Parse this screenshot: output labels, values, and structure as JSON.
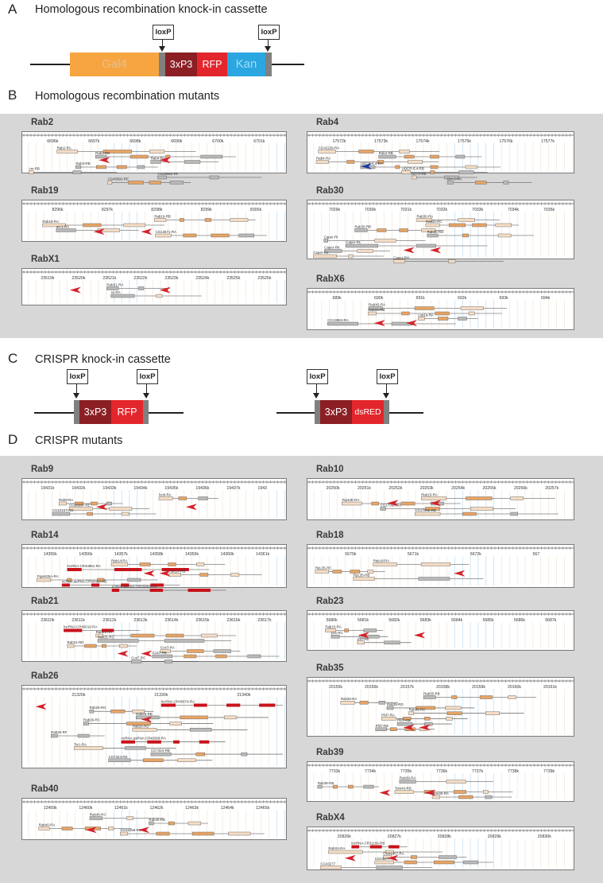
{
  "sections": {
    "a": {
      "letter": "A",
      "title": "Homologous recombination knock-in cassette"
    },
    "b": {
      "letter": "B",
      "title": "Homologous recombination mutants"
    },
    "c": {
      "letter": "C",
      "title": "CRISPR knock-in cassette"
    },
    "d": {
      "letter": "D",
      "title": "CRISPR mutants"
    }
  },
  "loxp": "loxP",
  "cassette_a": {
    "gal4": "Gal4",
    "p3": "3xP3",
    "rfp": "RFP",
    "kan": "Kan"
  },
  "cassette_c1": {
    "p3": "3xP3",
    "rfp": "RFP"
  },
  "cassette_c2": {
    "p3": "3xP3",
    "dsred": "dsRED"
  },
  "colors": {
    "orange": "#f7a541",
    "darkred": "#8b1f24",
    "red": "#e3262c",
    "blue": "#2aa6e0",
    "grey": "#808080",
    "panel_bg": "#d7d7d7",
    "exon": "#e7a466",
    "utr": "#f4dcc4",
    "ncexon": "#c8121a",
    "guide": "#d4222a",
    "guide_blue": "#1f3e9e"
  },
  "b_panels": [
    {
      "name": "Rab2",
      "ticks": [
        "6696k",
        "6697k",
        "6698k",
        "6699k",
        "6700k",
        "6701k"
      ],
      "labels": [
        "Rab2-RA",
        "Rab2-RB",
        "Rab4-RA",
        "Rab4-RB",
        "cm-RB",
        "CG45992-RF",
        "CG45992-RE"
      ]
    },
    {
      "name": "Rab4",
      "ticks": [
        "17572k",
        "17573k",
        "17574k",
        "17575k",
        "17576k",
        "17577k"
      ],
      "labels": [
        "CG42239-RA",
        "Rab4-RB",
        "Rab4-RA",
        "UQCR-6.4-RA",
        "UQCR-6.4-RB",
        "Dcr-2-RB",
        "Dcr-2-RA"
      ]
    },
    {
      "name": "Rab19",
      "ticks": [
        "8296k",
        "8297k",
        "8298k",
        "8299k",
        "8300k"
      ],
      "labels": [
        "Rab19-RB",
        "Rab19-RA",
        "ari-1-RA",
        "CG13671-RA"
      ]
    },
    {
      "name": "Rab30",
      "ticks": [
        "7029k",
        "7030k",
        "7031k",
        "7032k",
        "7033k",
        "7034k",
        "7035k"
      ],
      "labels": [
        "Rab30-RA",
        "Rab30-RC",
        "Rab30-RB",
        "Rab30-RD",
        "Caper-RI",
        "Caper-RL",
        "Caper-RK",
        "Caper-RJ",
        "Caper-RH"
      ]
    },
    {
      "name": "RabX1",
      "ticks": [
        "23519k",
        "23520k",
        "23521k",
        "23522k",
        "23523k",
        "23524k",
        "23525k",
        "23526k"
      ],
      "labels": [
        "RabX1-RA",
        "sc-RA"
      ]
    },
    {
      "name": "RabX6",
      "ticks": [
        "689k",
        "690k",
        "691k",
        "692k",
        "693k",
        "694k"
      ],
      "labels": [
        "RabX6-RA",
        "RabX6-RB",
        "Lsp1a-RA",
        "CG13894-RA"
      ]
    }
  ],
  "d_panels": [
    {
      "name": "Rab9",
      "ticks": [
        "19431k",
        "19432k",
        "19433k",
        "19434k",
        "19435k",
        "19436k",
        "19437k",
        "1943"
      ],
      "labels": [
        "lcub-RA",
        "Rab9-RA",
        "CG10237-RE",
        "CG10237-RD"
      ]
    },
    {
      "name": "Rab10",
      "ticks": [
        "20250k",
        "20251k",
        "20252k",
        "20253k",
        "20254k",
        "20255k",
        "20256k",
        "20257k"
      ],
      "labels": [
        "Rab10-RA",
        "Tsp42E-RA",
        "CG17065-RA",
        "CG17065-RB"
      ]
    },
    {
      "name": "Rab14",
      "ticks": [
        "14355k",
        "14356k",
        "14357k",
        "14358k",
        "14359k",
        "14360k",
        "14361k"
      ],
      "labels": [
        "Rab14-RA",
        "lncRNA:CR44851-RA",
        "Rab14-RB",
        "Pgant35A-RA",
        "ncRNA:asRNA:CR43463-RB",
        "ncRNA:asRNA:CR43463-RA"
      ]
    },
    {
      "name": "Rab18",
      "ticks": [
        "5670k",
        "5671k",
        "5672k",
        "567"
      ],
      "labels": [
        "Rab18-RA",
        "RpL35-RC",
        "RpL35-RB"
      ]
    },
    {
      "name": "Rab21",
      "ticks": [
        "23610k",
        "23611k",
        "23612k",
        "23613k",
        "23614k",
        "23615k",
        "23616k",
        "23617k"
      ],
      "labels": [
        "lncRNA:CR45010-RA",
        "Rab21-RA",
        "Rab21-RC",
        "Rab21-RD",
        "Cox7-RA",
        "Cox7-RB",
        "Cox7-RC"
      ]
    },
    {
      "name": "Rab23",
      "ticks": [
        "5680k",
        "5681k",
        "5682k",
        "5683k",
        "5684k",
        "5685k",
        "5686k",
        "5687k"
      ],
      "labels": [
        "Rab23-RA",
        "p1c-RC",
        "p1c-RE"
      ]
    },
    {
      "name": "Rab26",
      "ticks": [
        "21320k",
        "21330k",
        "21340k"
      ],
      "labels": [
        "lncRNA:CR45674-RA",
        "Rab26-RG",
        "Rab26-RB",
        "Rab26-RC",
        "Rab26-RD",
        "Rab26-RF",
        "ncRNA:asRNA:CR46068-RA",
        "Tsr1-RA",
        "CG7324-RB",
        "CG7324-RE"
      ]
    },
    {
      "name": "Rab35",
      "ticks": [
        "20155k",
        "20156k",
        "20157k",
        "20158k",
        "20159k",
        "20160k",
        "20161k"
      ],
      "labels": [
        "Rab35-RB",
        "Rab35-RA",
        "Rab35-RD",
        "Rab35-RC",
        "Phf7-RA",
        "Phf7-RB",
        "Phf7-RE"
      ]
    },
    {
      "name": "Rab39",
      "ticks": [
        "7733k",
        "7734k",
        "7735k",
        "7736k",
        "7737k",
        "7738k",
        "7739k"
      ],
      "labels": [
        "Rab39-RA",
        "Rab39-RB",
        "Tom40-RB",
        "Tom40-RA"
      ]
    },
    {
      "name": "Rab40",
      "ticks": [
        "12459k",
        "12460k",
        "12461k",
        "12462k",
        "12463k",
        "12464k",
        "12465k"
      ],
      "labels": [
        "Rab40-RC",
        "Rab40-RB",
        "Rab40-RA",
        "CG42258-RC"
      ]
    },
    {
      "name": "RabX4",
      "ticks": [
        "20826k",
        "20827k",
        "20828k",
        "20829k",
        "20830k"
      ],
      "labels": [
        "lncRNA:CR31166-RB",
        "RabX4-RA",
        "CG31357-RA",
        "CG43277",
        "CG43277"
      ]
    }
  ]
}
